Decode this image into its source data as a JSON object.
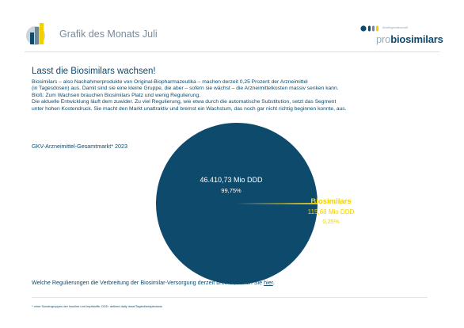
{
  "colors": {
    "primary": "#0e4a6c",
    "accent": "#f2d000",
    "muted": "#7a8a99",
    "brand_light": "#93aebc"
  },
  "icons": {
    "header_logo": "chart-logo-icon",
    "brand_dots": "brand-dots-icon"
  },
  "header": {
    "title": "Grafik des Monats Juli",
    "brand_tagline": "Arbeitsgemeinschaft",
    "brand_prefix": "pro",
    "brand_name": "biosimilars"
  },
  "main": {
    "headline": "Lasst die Biosimilars wachsen!",
    "intro_lines": [
      "Biosimilars – also Nachahmerprodukte von Original-Biopharmazeutika – machen derzeit 0,25 Prozent der Arzneimittel",
      "(in Tagesdosen) aus. Damit sind sie eine kleine Gruppe, die aber – sofern sie wächst – die Arzneimittelkosten massiv senken kann.",
      "Bloß: Zum Wachsen brauchen Biosimilars Platz und wenig Regulierung.",
      "Die aktuelle Entwicklung läuft dem zuwider. Zu viel Regulierung, wie etwa durch die automatische Substitution, setzt das Segment",
      "unter hohen Kostendruck. Sie macht den Markt unattraktiv und bremst ein Wachstum, das noch gar nicht richtig beginnen konnte, aus."
    ]
  },
  "chart_data": {
    "type": "pie",
    "title": "GKV-Arzneimittel-Gesamtmarkt* 2023",
    "slices": [
      {
        "name": "",
        "value": 46410.73,
        "value_label": "46.410,73 Mio DDD",
        "percent_label": "99,75%",
        "color": "#0e4a6c"
      },
      {
        "name": "Biosimilars",
        "value": 115.68,
        "value_label": "115,68 Mio DDD",
        "percent_label": "0,25%",
        "color": "#f2d000"
      }
    ]
  },
  "footer": {
    "question_text": "Welche Regulierungen die Verbreitung der Biosimilar-Versorgung derzeit bremst, sehen Sie ",
    "link_text": "hier",
    "question_end": ".",
    "footnote": "* ohne Sondergruppen der Insuline und Impfstoffe, DDD: defined daily dose/Tagestherapiedosis"
  }
}
